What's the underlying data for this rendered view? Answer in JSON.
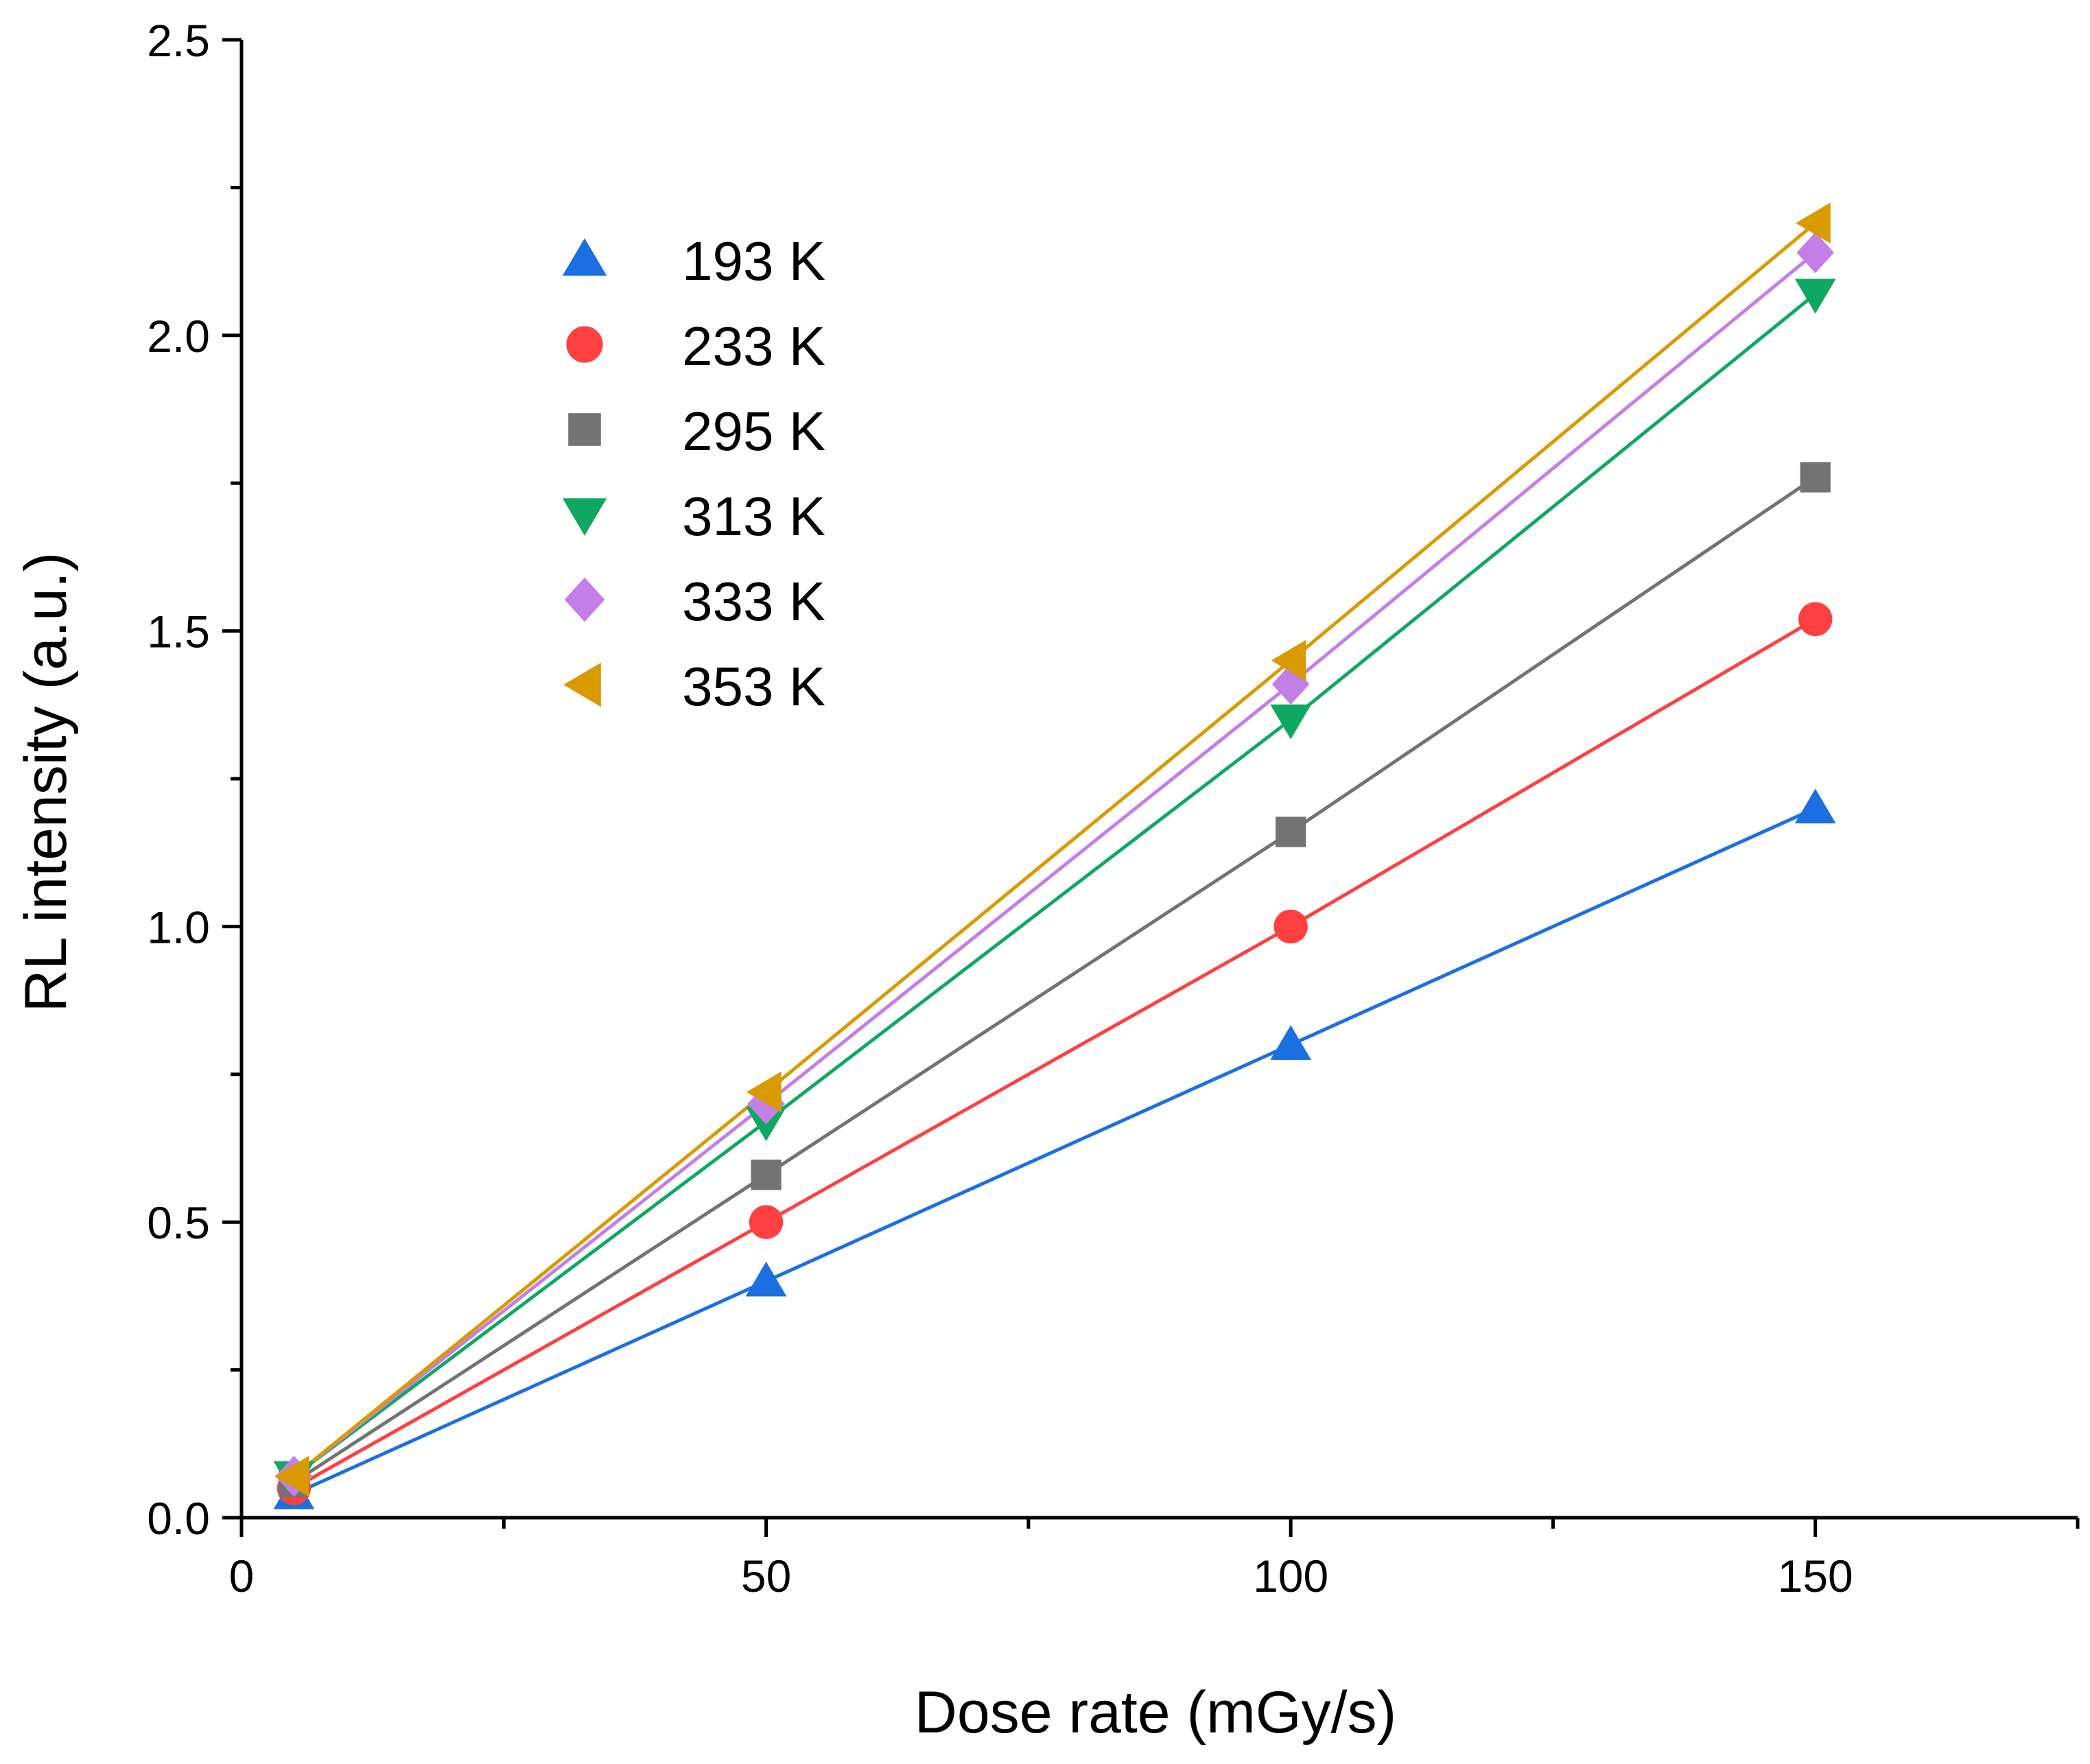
{
  "chart_data": {
    "type": "line",
    "title": "",
    "xlabel": "Dose rate (mGy/s)",
    "ylabel": "RL intensity (a.u.)",
    "xlim": [
      0,
      175
    ],
    "ylim": [
      0,
      2.5
    ],
    "x_major_ticks": [
      0,
      50,
      100,
      150
    ],
    "x_tick_labels": [
      "0",
      "50",
      "100",
      "150"
    ],
    "x_minor_ticks": [
      25,
      75,
      125,
      175
    ],
    "y_major_ticks": [
      0,
      0.5,
      1.0,
      1.5,
      2.0,
      2.5
    ],
    "y_tick_labels": [
      "0.0",
      "0.5",
      "1.0",
      "1.5",
      "2.0",
      "2.5"
    ],
    "y_minor_ticks": [
      0.25,
      0.75,
      1.25,
      1.75,
      2.25
    ],
    "grid": false,
    "legend_position": "top-left",
    "x": [
      5,
      50,
      100,
      150
    ],
    "series": [
      {
        "name": "193 K",
        "marker": "triangle-up",
        "color": "#1c6fe0",
        "values": [
          0.04,
          0.4,
          0.8,
          1.2
        ]
      },
      {
        "name": "233 K",
        "marker": "circle",
        "color": "#ff4040",
        "values": [
          0.05,
          0.5,
          1.0,
          1.52
        ]
      },
      {
        "name": "295 K",
        "marker": "square",
        "color": "#737373",
        "values": [
          0.06,
          0.58,
          1.16,
          1.76
        ]
      },
      {
        "name": "313 K",
        "marker": "triangle-down",
        "color": "#0fa862",
        "values": [
          0.07,
          0.67,
          1.35,
          2.07
        ]
      },
      {
        "name": "333 K",
        "marker": "diamond",
        "color": "#c47ee8",
        "values": [
          0.07,
          0.7,
          1.41,
          2.14
        ]
      },
      {
        "name": "353 K",
        "marker": "triangle-left",
        "color": "#d99a00",
        "values": [
          0.07,
          0.72,
          1.45,
          2.19
        ]
      }
    ]
  }
}
